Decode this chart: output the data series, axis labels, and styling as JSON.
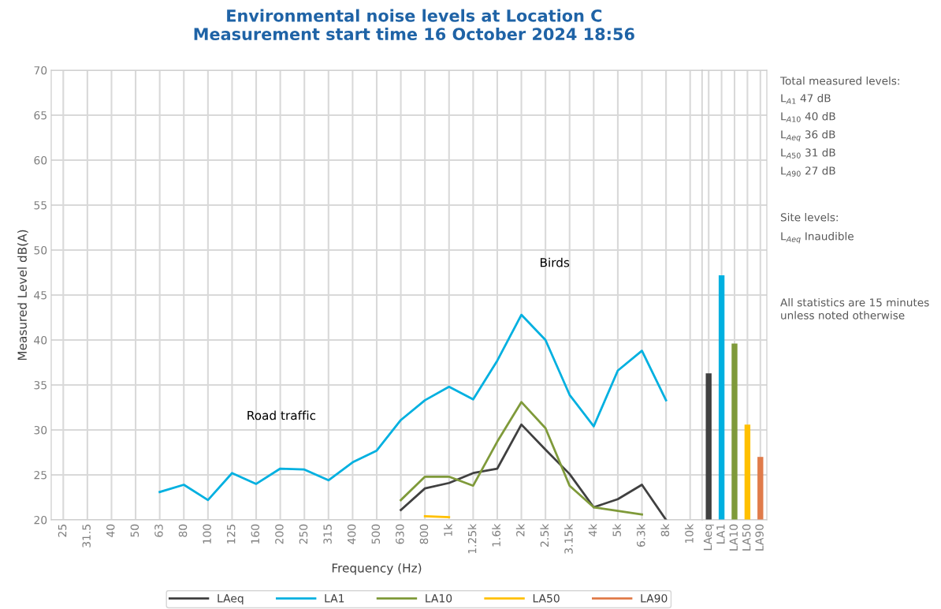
{
  "chart_data": [
    {
      "type": "line",
      "title": "Environmental noise levels at Location C\nMeasurement start time 16 October 2024 18:56",
      "xlabel": "Frequency (Hz)",
      "ylabel": "Measured Level dB(A)",
      "categories": [
        "25",
        "31.5",
        "40",
        "50",
        "63",
        "80",
        "100",
        "125",
        "160",
        "200",
        "250",
        "315",
        "400",
        "500",
        "630",
        "800",
        "1k",
        "1.25k",
        "1.6k",
        "2k",
        "2.5k",
        "3.15k",
        "4k",
        "5k",
        "6.3k",
        "8k",
        "10k"
      ],
      "series": [
        {
          "name": "LAeq",
          "color": "#404040",
          "values": [
            null,
            null,
            null,
            null,
            null,
            null,
            null,
            null,
            null,
            null,
            null,
            null,
            null,
            null,
            21.1,
            23.5,
            24.1,
            25.2,
            25.7,
            30.6,
            27.8,
            25.1,
            21.4,
            22.3,
            23.9,
            20.0,
            null
          ]
        },
        {
          "name": "LA1",
          "color": "#00b0e0",
          "values": [
            null,
            null,
            null,
            null,
            23.1,
            23.9,
            22.2,
            25.2,
            24.0,
            25.7,
            25.6,
            24.4,
            26.4,
            27.7,
            31.1,
            33.3,
            34.8,
            33.4,
            37.7,
            42.8,
            40.0,
            33.9,
            30.4,
            36.6,
            38.8,
            33.3,
            null
          ]
        },
        {
          "name": "LA10",
          "color": "#7f9a3a",
          "values": [
            null,
            null,
            null,
            null,
            null,
            null,
            null,
            null,
            null,
            null,
            null,
            null,
            null,
            null,
            22.2,
            24.8,
            24.8,
            23.8,
            28.7,
            33.1,
            30.2,
            23.8,
            21.4,
            21.0,
            20.6,
            null,
            null
          ]
        },
        {
          "name": "LA50",
          "color": "#ffc000",
          "values": [
            null,
            null,
            null,
            null,
            null,
            null,
            null,
            null,
            null,
            null,
            null,
            null,
            null,
            null,
            null,
            20.4,
            20.3,
            null,
            null,
            null,
            null,
            null,
            null,
            null,
            null,
            null,
            null
          ]
        },
        {
          "name": "LA90",
          "color": "#e07b4a",
          "values": [
            null,
            null,
            null,
            null,
            null,
            null,
            null,
            null,
            null,
            null,
            null,
            null,
            null,
            null,
            null,
            null,
            null,
            null,
            null,
            null,
            null,
            null,
            null,
            null,
            null,
            null,
            null
          ]
        }
      ],
      "ylim": [
        20,
        70
      ],
      "yticks": [
        20,
        25,
        30,
        35,
        40,
        45,
        50,
        55,
        60,
        65,
        70
      ],
      "grid": true,
      "legend": "bottom",
      "marker": "none",
      "line_style": "solid",
      "annotations": [
        "Road traffic",
        "Birds",
        "Total measured levels:",
        "L$_{A1}$ 47 dB",
        "L$_{A10}$ 40 dB",
        "L$_{Aeq}$ 36 dB",
        "L$_{A50}$ 31 dB",
        "L$_{A90}$ 27 dB",
        "Site levels:",
        "L$_{Aeq}$ Inaudible",
        "All statistics are 15 minutes\nunless noted otherwise"
      ]
    },
    {
      "type": "bar",
      "categories": [
        "LAeq",
        "LA1",
        "LA10",
        "LA50",
        "LA90"
      ],
      "values": [
        36.3,
        47.2,
        39.6,
        30.6,
        27.0
      ],
      "colors": [
        "#404040",
        "#00b0e0",
        "#7f9a3a",
        "#ffc000",
        "#e07b4a"
      ],
      "ylim": [
        20,
        70
      ],
      "yticks": [
        20,
        25,
        30,
        35,
        40,
        45,
        50,
        55,
        60,
        65,
        70
      ],
      "grid": true,
      "tick_labels": "x"
    }
  ]
}
